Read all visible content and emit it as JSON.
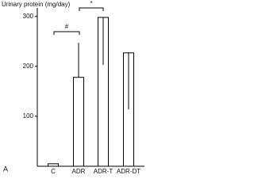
{
  "chart_data": {
    "type": "bar",
    "y_label": "Urinary protein (mg/day)",
    "categories": [
      "C",
      "ADR",
      "ADR-T",
      "ADR-DT"
    ],
    "values": [
      5,
      178,
      298,
      227
    ],
    "error_high": [
      null,
      247,
      null,
      null
    ],
    "error_low": [
      null,
      null,
      203,
      114
    ],
    "color": "#ffffff",
    "ylim": [
      0,
      317
    ],
    "yticks": [
      100,
      200,
      300
    ],
    "annotations": [
      "#",
      "*"
    ],
    "panel_label": "A"
  }
}
